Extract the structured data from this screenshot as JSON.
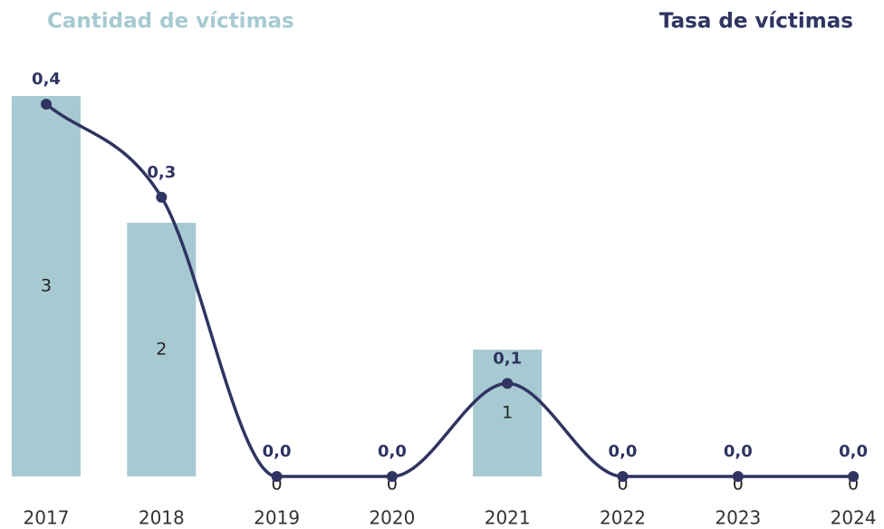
{
  "chart_data": {
    "type": "bar-line",
    "title_left": "Cantidad de víctimas",
    "title_right": "Tasa de víctimas",
    "categories": [
      "2017",
      "2018",
      "2019",
      "2020",
      "2021",
      "2022",
      "2023",
      "2024"
    ],
    "series": [
      {
        "name": "Cantidad de víctimas",
        "type": "bar",
        "color": "#a7cad2",
        "values": [
          3,
          2,
          0,
          0,
          1,
          0,
          0,
          0
        ]
      },
      {
        "name": "Tasa de víctimas",
        "type": "line",
        "axis": "y2",
        "color": "#2f3461",
        "values": [
          0.4,
          0.3,
          0,
          0,
          0.1,
          0,
          0,
          0
        ],
        "value_labels": [
          "0,4",
          "0,3",
          "0,0",
          "0,0",
          "0,1",
          "0,0",
          "0,0",
          "0,0"
        ]
      }
    ],
    "ylim": [
      0,
      3
    ],
    "y2lim": [
      0,
      0.4
    ]
  }
}
